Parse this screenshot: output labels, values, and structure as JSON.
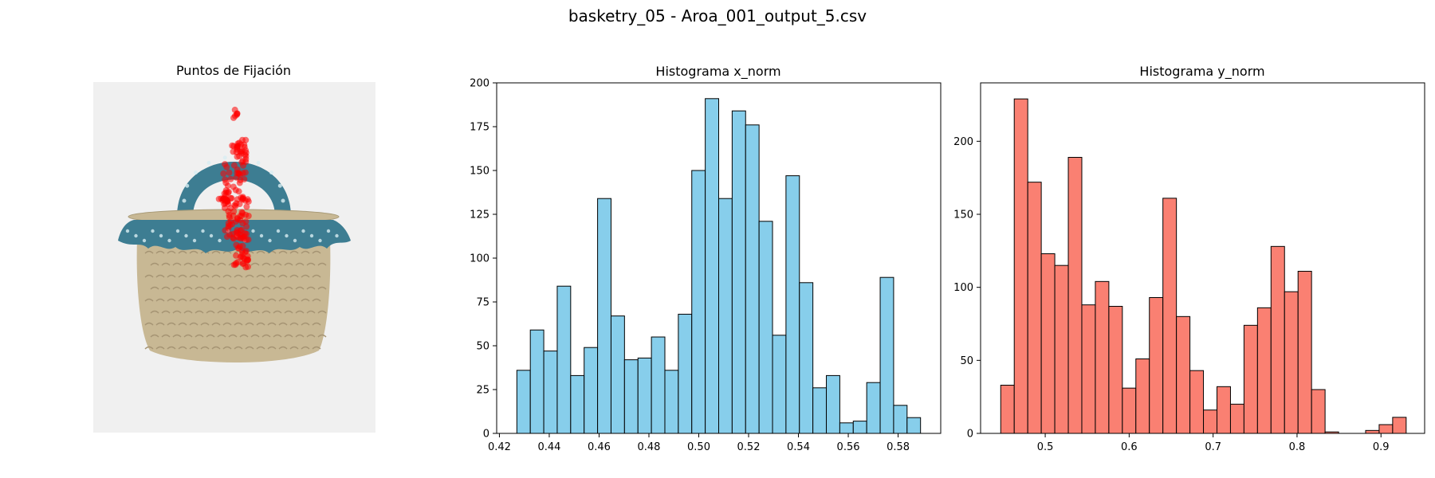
{
  "figure": {
    "suptitle": "basketry_05 - Aroa_001_output_5.csv",
    "bar_edge_color": "#000000"
  },
  "image_panel": {
    "title": "Puntos de Fijación",
    "background_color": "#f0f0f0",
    "fixation_color": "#ff0000",
    "fabric_color": "#3d7d92",
    "straw_color": "#c8b894"
  },
  "chart_data": [
    {
      "type": "bar",
      "title": "Histograma x_norm",
      "xlabel": "",
      "ylabel": "",
      "color": "#87ceeb",
      "bin_start": 0.427,
      "bin_width": 0.0054,
      "values": [
        36,
        59,
        47,
        84,
        33,
        49,
        134,
        67,
        42,
        43,
        55,
        36,
        68,
        150,
        191,
        134,
        184,
        176,
        121,
        56,
        147,
        86,
        26,
        33,
        6,
        7,
        29,
        89,
        16,
        9
      ],
      "xlim": [
        0.4189,
        0.5971
      ],
      "ylim": [
        0,
        200
      ],
      "xticks": [
        0.42,
        0.44,
        0.46,
        0.48,
        0.5,
        0.52,
        0.54,
        0.56,
        0.58
      ],
      "xtick_labels": [
        "0.42",
        "0.44",
        "0.46",
        "0.48",
        "0.50",
        "0.52",
        "0.54",
        "0.56",
        "0.58"
      ],
      "yticks": [
        0,
        25,
        50,
        75,
        100,
        125,
        150,
        175,
        200
      ],
      "ytick_labels": [
        "0",
        "25",
        "50",
        "75",
        "100",
        "125",
        "150",
        "175",
        "200"
      ],
      "grid": false
    },
    {
      "type": "bar",
      "title": "Histograma y_norm",
      "xlabel": "",
      "ylabel": "",
      "color": "#fa8072",
      "bin_start": 0.447,
      "bin_width": 0.0161,
      "values": [
        33,
        229,
        172,
        123,
        115,
        189,
        88,
        104,
        87,
        31,
        51,
        93,
        161,
        80,
        43,
        16,
        32,
        20,
        74,
        86,
        128,
        97,
        111,
        30,
        1,
        0,
        0,
        2,
        6,
        11
      ],
      "xlim": [
        0.423,
        0.952
      ],
      "ylim": [
        0,
        240
      ],
      "xticks": [
        0.5,
        0.6,
        0.7,
        0.8,
        0.9
      ],
      "xtick_labels": [
        "0.5",
        "0.6",
        "0.7",
        "0.8",
        "0.9"
      ],
      "yticks": [
        0,
        50,
        100,
        150,
        200
      ],
      "ytick_labels": [
        "0",
        "50",
        "100",
        "150",
        "200"
      ],
      "grid": false
    }
  ]
}
